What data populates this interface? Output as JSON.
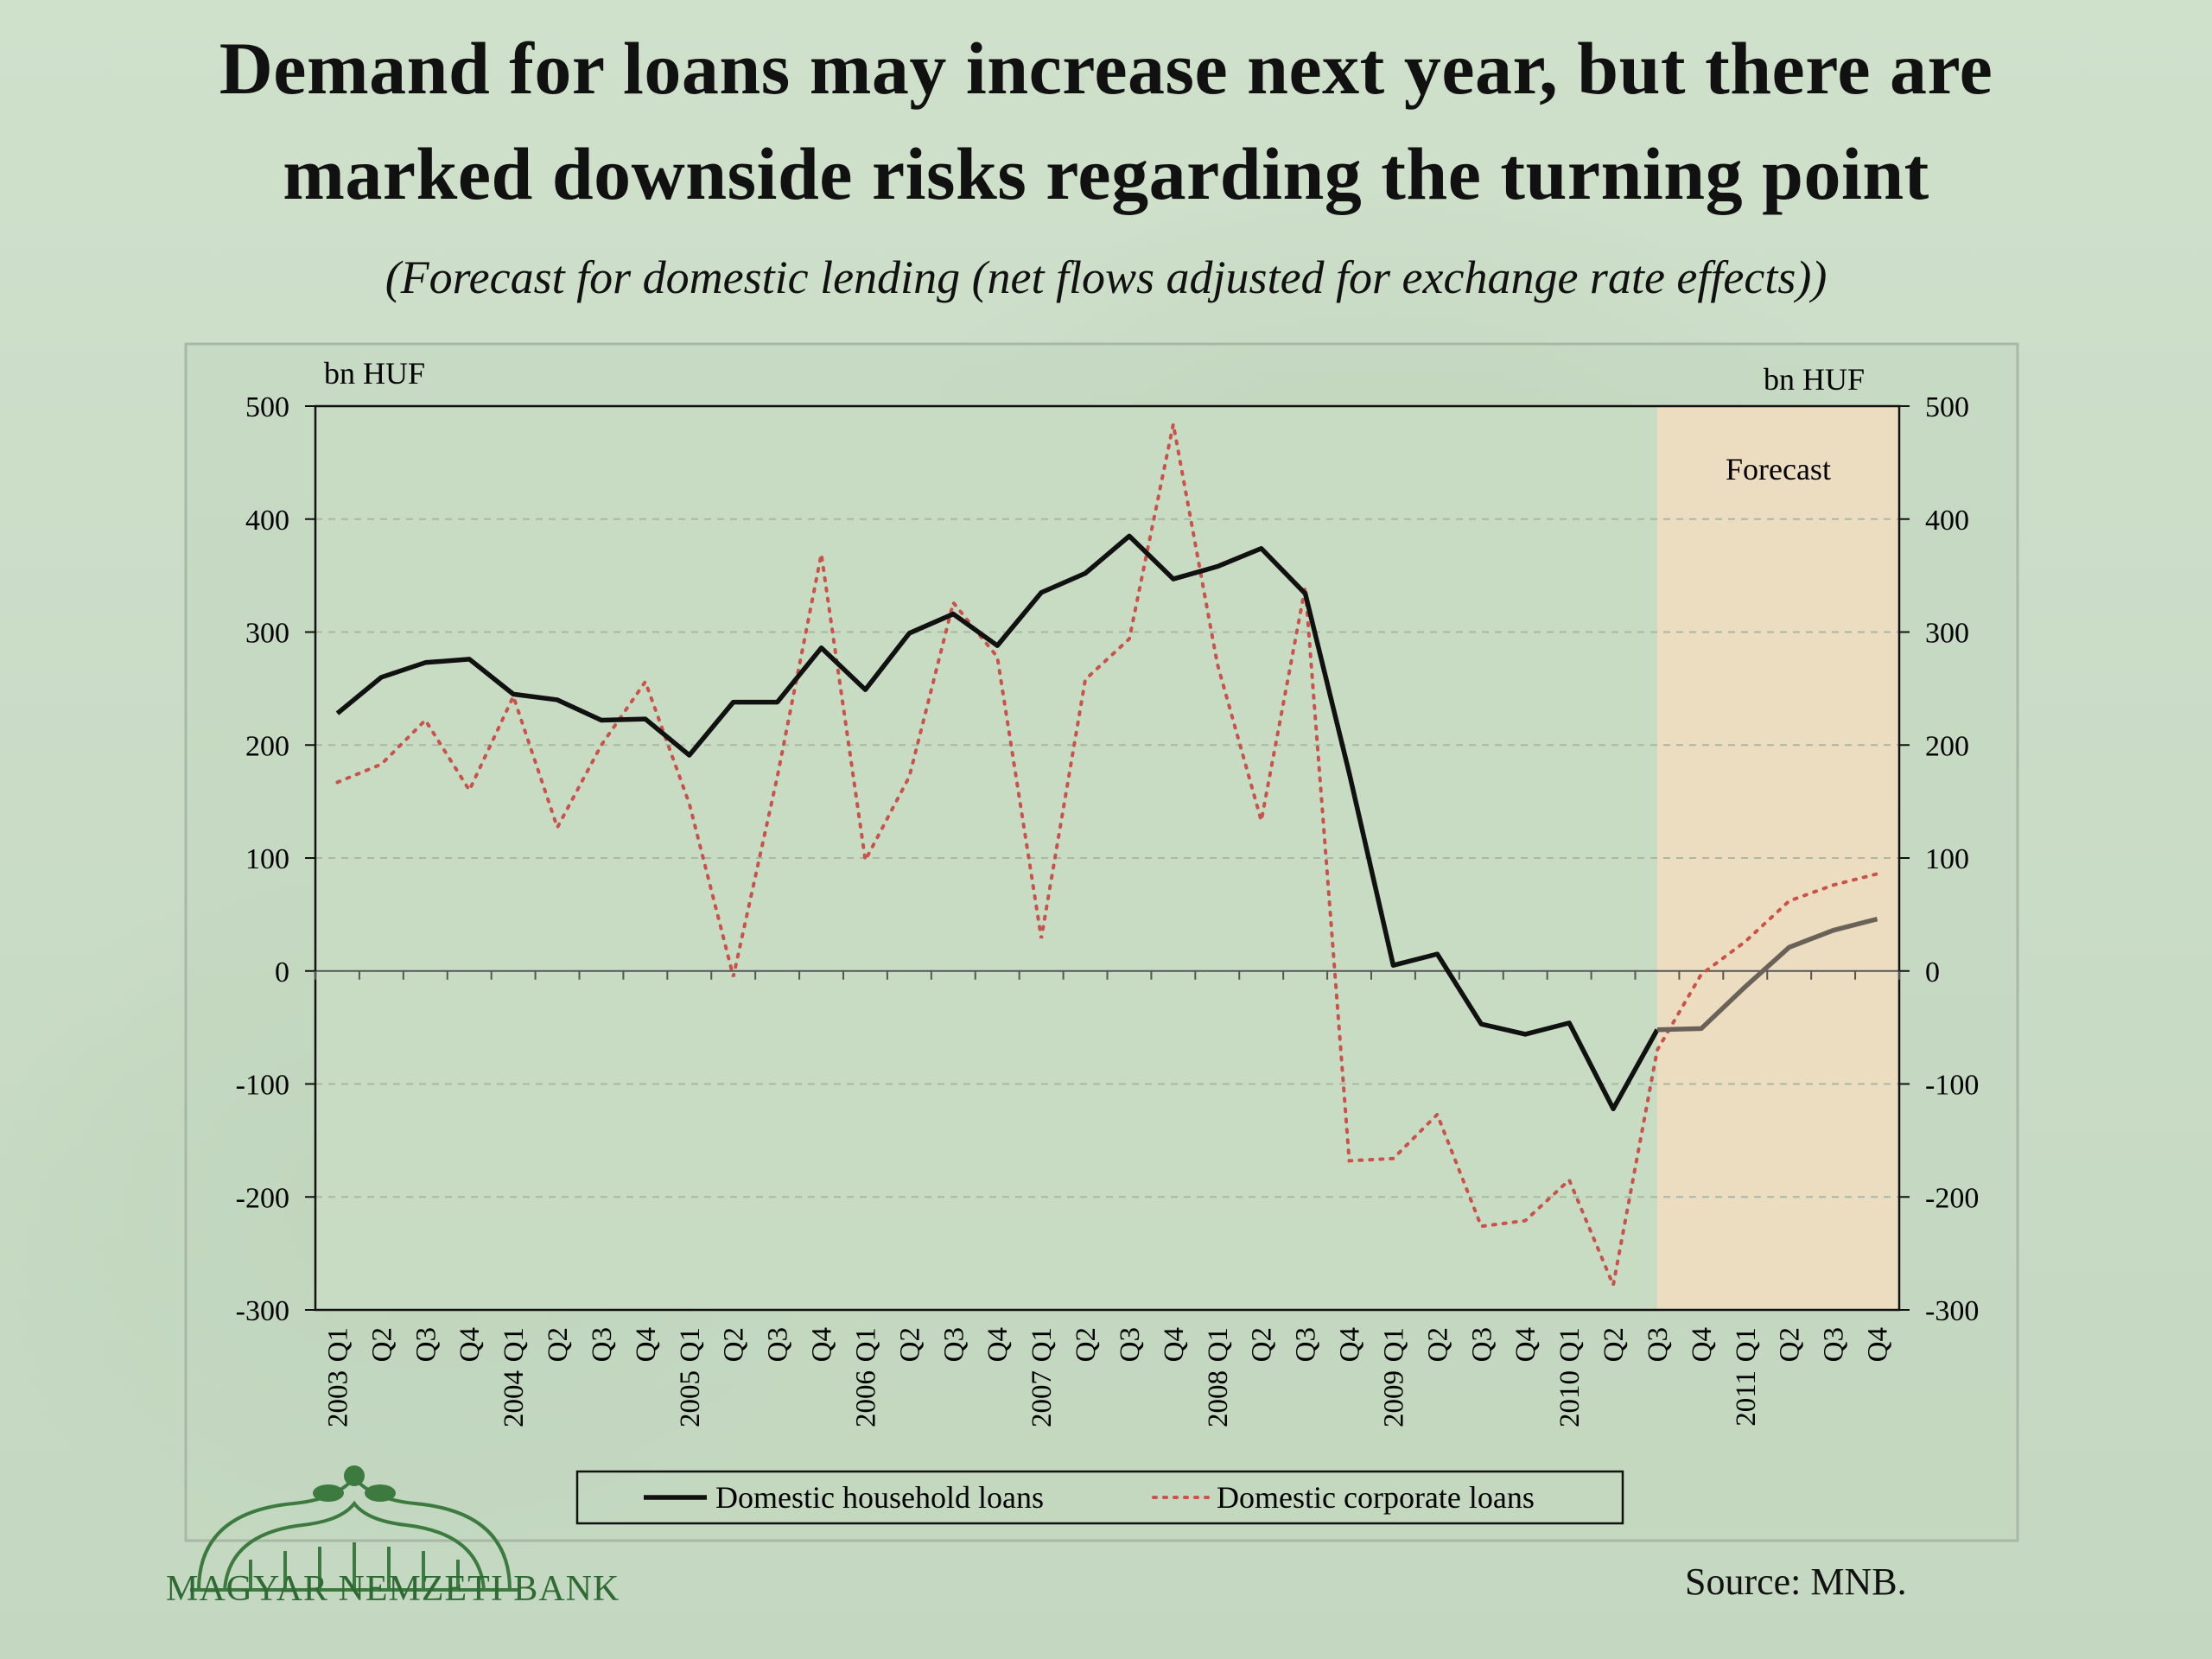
{
  "header": {
    "title_line1": "Demand for loans may increase next year, but there are",
    "title_line2": "marked downside risks  regarding the turning point",
    "subtitle": "(Forecast for domestic lending (net flows adjusted for exchange rate effects))"
  },
  "footer": {
    "logo_text": "MAGYAR NEMZETI BANK",
    "source": "Source: MNB."
  },
  "colors": {
    "household": "#111111",
    "household_forecast": "#6a6258",
    "corporate": "#c9534b",
    "forecast_band": "#ecdcc0"
  },
  "chart_data": {
    "type": "line",
    "ylabel_left": "bn HUF",
    "ylabel_right": "bn HUF",
    "ylim": [
      -300,
      500
    ],
    "yticks": [
      -300,
      -200,
      -100,
      0,
      100,
      200,
      300,
      400,
      500
    ],
    "grid": "horizontal dashed",
    "legend_position": "bottom",
    "forecast_label": "Forecast",
    "forecast_start_index": 30,
    "categories": [
      "2003 Q1",
      "Q2",
      "Q3",
      "Q4",
      "2004 Q1",
      "Q2",
      "Q3",
      "Q4",
      "2005 Q1",
      "Q2",
      "Q3",
      "Q4",
      "2006 Q1",
      "Q2",
      "Q3",
      "Q4",
      "2007 Q1",
      "Q2",
      "Q3",
      "Q4",
      "2008 Q1",
      "Q2",
      "Q3",
      "Q4",
      "2009 Q1",
      "Q2",
      "Q3",
      "Q4",
      "2010 Q1",
      "Q2",
      "Q3",
      "Q4",
      "2011 Q1",
      "Q2",
      "Q3",
      "Q4"
    ],
    "tick_quarters": [
      "Q1",
      "Q2",
      "Q3",
      "Q4",
      "Q1",
      "Q2",
      "Q3",
      "Q4",
      "Q1",
      "Q2",
      "Q3",
      "Q4",
      "Q1",
      "Q2",
      "Q3",
      "Q4",
      "Q1",
      "Q2",
      "Q3",
      "Q4",
      "Q1",
      "Q2",
      "Q3",
      "Q4",
      "Q1",
      "Q2",
      "Q3",
      "Q4",
      "Q1",
      "Q2",
      "Q3",
      "Q4",
      "Q1",
      "Q2",
      "Q3",
      "Q4"
    ],
    "year_labels": [
      {
        "index": 0,
        "label": "2003"
      },
      {
        "index": 4,
        "label": "2004"
      },
      {
        "index": 8,
        "label": "2005"
      },
      {
        "index": 12,
        "label": "2006"
      },
      {
        "index": 16,
        "label": "2007"
      },
      {
        "index": 20,
        "label": "2008"
      },
      {
        "index": 24,
        "label": "2009"
      },
      {
        "index": 28,
        "label": "2010"
      },
      {
        "index": 32,
        "label": "2011"
      }
    ],
    "series": [
      {
        "name": "Domestic household loans",
        "style": "solid",
        "values": [
          228,
          260,
          273,
          276,
          245,
          240,
          222,
          223,
          191,
          238,
          238,
          286,
          249,
          299,
          316,
          288,
          335,
          352,
          385,
          347,
          358,
          374,
          334,
          175,
          5,
          15,
          -47,
          -56,
          -46,
          -122,
          -52,
          -51,
          -14,
          21,
          36,
          46
        ]
      },
      {
        "name": "Domestic corporate loans",
        "style": "dotted",
        "values": [
          167,
          183,
          222,
          160,
          243,
          127,
          200,
          256,
          148,
          -5,
          172,
          369,
          98,
          172,
          326,
          278,
          29,
          258,
          294,
          484,
          272,
          133,
          340,
          -168,
          -166,
          -127,
          -226,
          -221,
          -185,
          -278,
          -70,
          -3,
          26,
          62,
          76,
          86
        ]
      }
    ]
  }
}
